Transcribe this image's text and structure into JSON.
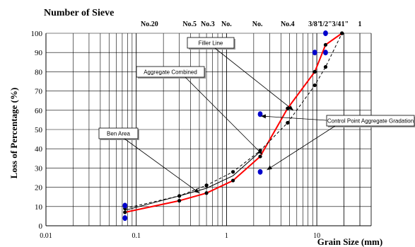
{
  "chart_data": {
    "type": "line",
    "top_title": "Number of Sieve",
    "sieve_labels": [
      {
        "label": "No.20",
        "size": 0.14
      },
      {
        "label": "No.5",
        "size": 0.39
      },
      {
        "label": "No.3",
        "size": 0.62
      },
      {
        "label": "No.",
        "size": 1.0
      },
      {
        "label": "No.",
        "size": 2.2
      },
      {
        "label": "No.4",
        "size": 4.75
      },
      {
        "label": "3/8\"",
        "size": 9.5
      },
      {
        "label": "1/2\"",
        "size": 12.5
      },
      {
        "label": "3/4",
        "size": 16.5
      },
      {
        "label": "1\"",
        "size": 20.5
      },
      {
        "label": "1",
        "size": 30
      }
    ],
    "xlabel": "Grain Size (mm)",
    "ylabel": "Loss of Percentage (%)",
    "xscale": "log",
    "xlim": [
      0.01,
      40
    ],
    "ylim": [
      0,
      100
    ],
    "xticks": [
      {
        "value": 0.01,
        "label": "0.01"
      },
      {
        "value": 0.1,
        "label": "0.1"
      },
      {
        "value": 1,
        "label": "1"
      },
      {
        "value": 10,
        "label": "10"
      }
    ],
    "yticks": [
      0,
      10,
      20,
      30,
      40,
      50,
      60,
      70,
      80,
      90,
      100
    ],
    "grid": true,
    "series": [
      {
        "name": "Aggregate Combined",
        "color": "#ff0000",
        "style": "solid",
        "marker": "circle",
        "x": [
          0.075,
          0.3,
          0.6,
          1.18,
          2.36,
          4.75,
          9.5,
          12.5,
          19
        ],
        "y": [
          7,
          13,
          17,
          23.5,
          36,
          61,
          80,
          94,
          100
        ]
      },
      {
        "name": "Filler Line",
        "color": "#000000",
        "style": "dashed",
        "marker": "circle",
        "x": [
          0.075,
          0.3,
          0.6,
          1.18,
          2.36,
          4.75,
          9.5,
          12.5,
          19
        ],
        "y": [
          9,
          15.5,
          21,
          28,
          39,
          53.5,
          73,
          82.5,
          100
        ]
      },
      {
        "name": "Ben Area",
        "color": "#000000",
        "style": "solid",
        "marker": "none",
        "x": [
          0.075,
          0.3,
          0.6,
          1.18,
          2.36
        ],
        "y": [
          8,
          15.5,
          19.5,
          26,
          38.5
        ]
      }
    ],
    "control_points": {
      "name": "Control Point Aggregate Gradation",
      "color": "#0000cc",
      "points": [
        {
          "x": 0.075,
          "y": 10.5
        },
        {
          "x": 0.075,
          "y": 4
        },
        {
          "x": 2.36,
          "y": 58
        },
        {
          "x": 2.36,
          "y": 28
        },
        {
          "x": 9.5,
          "y": 90
        },
        {
          "x": 12.5,
          "y": 100
        },
        {
          "x": 12.5,
          "y": 90
        }
      ]
    },
    "annotations": [
      {
        "text": "Filler Line",
        "target": {
          "x": 5.5,
          "y": 60
        }
      },
      {
        "text": "Aggregate Combined",
        "target": {
          "x": 2.5,
          "y": 37
        }
      },
      {
        "text": "Ben Area",
        "target": {
          "x": 0.5,
          "y": 17
        }
      },
      {
        "text": "Control Point Aggregate  Gradation",
        "targets": [
          {
            "x": 2.4,
            "y": 57
          },
          {
            "x": 2.8,
            "y": 29
          }
        ]
      }
    ]
  }
}
